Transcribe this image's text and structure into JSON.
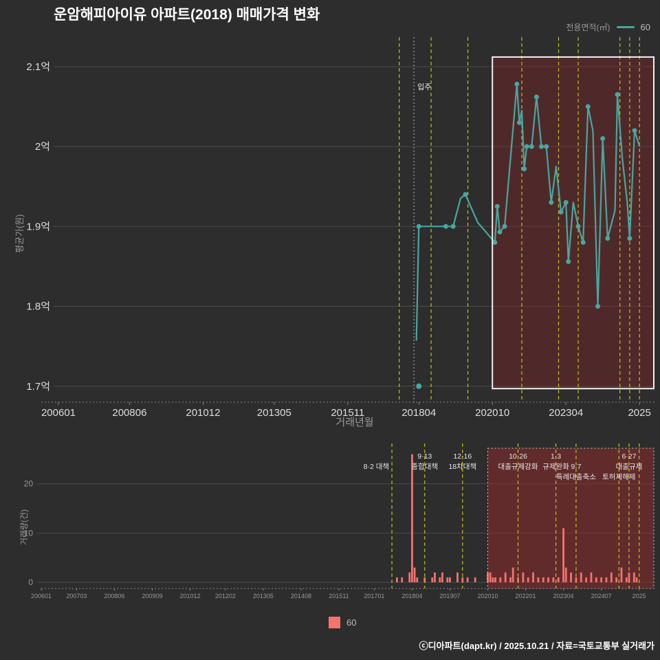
{
  "title": "운암해피아이유 아파트(2018) 매매가격 변화",
  "legend_top": {
    "label": "전용면적(㎡)",
    "series_label": "60"
  },
  "legend_bottom": {
    "series_label": "60"
  },
  "footer": "ⓒ디아파트(dapt.kr) / 2025.10.21 / 자료=국토교통부 실거래가",
  "colors": {
    "background": "#2d2d2d",
    "line": "#48a7a0",
    "bar": "#f4736e",
    "policy_line": "#c9c922",
    "grid": "#4d4d4d",
    "axis": "#888888",
    "box_fill_top": "rgba(136,38,38,0.38)",
    "box_fill_bottom": "rgba(150,42,42,0.5)",
    "box_border": "#f0f0f0",
    "tick_light": "#dddddd",
    "tick_muted": "#999999",
    "annotation_text": "#e6e6e6"
  },
  "chart_data": [
    {
      "type": "line",
      "name": "매매가격 변화",
      "ylabel": "평균가(원)",
      "xlabel": "거래년월",
      "ylim": [
        1.68,
        2.13
      ],
      "yticks": [
        {
          "label": "2.1억",
          "v": 2.1
        },
        {
          "label": "2억",
          "v": 2.0
        },
        {
          "label": "1.9억",
          "v": 1.9
        },
        {
          "label": "1.8억",
          "v": 1.8
        },
        {
          "label": "1.7억",
          "v": 1.7
        }
      ],
      "xticks": [
        {
          "label": "200601",
          "m": 0
        },
        {
          "label": "200806",
          "m": 29
        },
        {
          "label": "201012",
          "m": 59
        },
        {
          "label": "201305",
          "m": 88
        },
        {
          "label": "201511",
          "m": 118
        },
        {
          "label": "201804",
          "m": 147
        },
        {
          "label": "202010",
          "m": 177
        },
        {
          "label": "202304",
          "m": 207
        },
        {
          "label": "2025",
          "m": 237
        }
      ],
      "series": [
        {
          "name": "60",
          "points": [
            {
              "ym": "2018-03",
              "v": 1.757
            },
            {
              "ym": "2018-04",
              "v": 1.9,
              "m": 1
            },
            {
              "ym": "2019-03",
              "v": 1.9,
              "m": 1
            },
            {
              "ym": "2019-06",
              "v": 1.9,
              "m": 1
            },
            {
              "ym": "2019-09",
              "v": 1.935
            },
            {
              "ym": "2019-11",
              "v": 1.94,
              "m": 1
            },
            {
              "ym": "2020-04",
              "v": 1.905
            },
            {
              "ym": "2020-11",
              "v": 1.88,
              "m": 1
            },
            {
              "ym": "2020-12",
              "v": 1.925,
              "m": 1
            },
            {
              "ym": "2021-01",
              "v": 1.893,
              "m": 1
            },
            {
              "ym": "2021-03",
              "v": 1.9,
              "m": 1
            },
            {
              "ym": "2021-08",
              "v": 2.078,
              "m": 1
            },
            {
              "ym": "2021-09",
              "v": 2.03,
              "m": 1
            },
            {
              "ym": "2021-10",
              "v": 2.045
            },
            {
              "ym": "2021-11",
              "v": 1.972,
              "m": 1
            },
            {
              "ym": "2021-12",
              "v": 2.0,
              "m": 1
            },
            {
              "ym": "2022-02",
              "v": 2.0,
              "m": 1
            },
            {
              "ym": "2022-04",
              "v": 2.062,
              "m": 1
            },
            {
              "ym": "2022-06",
              "v": 2.0,
              "m": 1
            },
            {
              "ym": "2022-08",
              "v": 2.0,
              "m": 1
            },
            {
              "ym": "2022-10",
              "v": 1.93,
              "m": 1
            },
            {
              "ym": "2022-12",
              "v": 1.975
            },
            {
              "ym": "2023-02",
              "v": 1.918,
              "m": 1
            },
            {
              "ym": "2023-04",
              "v": 1.93,
              "m": 1
            },
            {
              "ym": "2023-05",
              "v": 1.856,
              "m": 1
            },
            {
              "ym": "2023-07",
              "v": 1.93
            },
            {
              "ym": "2023-09",
              "v": 1.9,
              "m": 1
            },
            {
              "ym": "2023-11",
              "v": 1.88,
              "m": 1
            },
            {
              "ym": "2024-01",
              "v": 2.05,
              "m": 1
            },
            {
              "ym": "2024-03",
              "v": 2.02
            },
            {
              "ym": "2024-05",
              "v": 1.8,
              "m": 1
            },
            {
              "ym": "2024-07",
              "v": 2.01,
              "m": 1
            },
            {
              "ym": "2024-09",
              "v": 1.885,
              "m": 1
            },
            {
              "ym": "2024-12",
              "v": 1.92
            },
            {
              "ym": "2025-01",
              "v": 2.065,
              "m": 1
            },
            {
              "ym": "2025-03",
              "v": 1.985
            },
            {
              "ym": "2025-05",
              "v": 1.93
            },
            {
              "ym": "2025-06",
              "v": 1.885,
              "m": 1
            },
            {
              "ym": "2025-08",
              "v": 2.02,
              "m": 1
            },
            {
              "ym": "2025-10",
              "v": 2.0
            }
          ]
        }
      ],
      "extra_points": [
        {
          "ym": "2018-04",
          "v": 1.7
        }
      ],
      "move_in": {
        "ym": "2018-02",
        "label": "입주"
      },
      "policy_dates": [
        "2017-08",
        "2018-09",
        "2019-12",
        "2021-10",
        "2023-01",
        "2023-09",
        "2025-02",
        "2025-06",
        "2025-10"
      ],
      "highlight_box": {
        "from": "2020-10",
        "v_range": [
          1.697,
          2.112
        ]
      }
    },
    {
      "type": "bar",
      "name": "거래량",
      "ylabel": "거래량(건)",
      "ylim": [
        0,
        27.5
      ],
      "yticks": [
        {
          "label": "0",
          "v": 0
        },
        {
          "label": "10",
          "v": 10
        },
        {
          "label": "20",
          "v": 20
        }
      ],
      "xticks": [
        {
          "label": "200601",
          "m": 0
        },
        {
          "label": "200703",
          "m": 14
        },
        {
          "label": "200806",
          "m": 29
        },
        {
          "label": "200909",
          "m": 44
        },
        {
          "label": "201012",
          "m": 59
        },
        {
          "label": "201202",
          "m": 73
        },
        {
          "label": "201305",
          "m": 88
        },
        {
          "label": "201408",
          "m": 103
        },
        {
          "label": "201511",
          "m": 118
        },
        {
          "label": "201701",
          "m": 132
        },
        {
          "label": "201804",
          "m": 147
        },
        {
          "label": "201907",
          "m": 162
        },
        {
          "label": "202010",
          "m": 177
        },
        {
          "label": "202201",
          "m": 192
        },
        {
          "label": "202304",
          "m": 207
        },
        {
          "label": "202407",
          "m": 222
        },
        {
          "label": "2025",
          "m": 237
        }
      ],
      "series": [
        {
          "name": "60",
          "bars": [
            {
              "ym": "2017-10",
              "v": 1
            },
            {
              "ym": "2017-12",
              "v": 1
            },
            {
              "ym": "2018-03",
              "v": 2
            },
            {
              "ym": "2018-04",
              "v": 26
            },
            {
              "ym": "2018-05",
              "v": 3
            },
            {
              "ym": "2018-06",
              "v": 1
            },
            {
              "ym": "2018-09",
              "v": 1
            },
            {
              "ym": "2018-12",
              "v": 1
            },
            {
              "ym": "2019-01",
              "v": 2
            },
            {
              "ym": "2019-03",
              "v": 1
            },
            {
              "ym": "2019-04",
              "v": 2
            },
            {
              "ym": "2019-06",
              "v": 1
            },
            {
              "ym": "2019-07",
              "v": 1
            },
            {
              "ym": "2019-10",
              "v": 2
            },
            {
              "ym": "2019-12",
              "v": 1
            },
            {
              "ym": "2020-02",
              "v": 1
            },
            {
              "ym": "2020-05",
              "v": 1
            },
            {
              "ym": "2020-10",
              "v": 2
            },
            {
              "ym": "2020-11",
              "v": 2
            },
            {
              "ym": "2020-12",
              "v": 1
            },
            {
              "ym": "2021-01",
              "v": 1
            },
            {
              "ym": "2021-03",
              "v": 1
            },
            {
              "ym": "2021-05",
              "v": 2
            },
            {
              "ym": "2021-07",
              "v": 1
            },
            {
              "ym": "2021-08",
              "v": 3
            },
            {
              "ym": "2021-10",
              "v": 1
            },
            {
              "ym": "2021-12",
              "v": 2
            },
            {
              "ym": "2022-02",
              "v": 1
            },
            {
              "ym": "2022-04",
              "v": 2
            },
            {
              "ym": "2022-06",
              "v": 1
            },
            {
              "ym": "2022-08",
              "v": 1
            },
            {
              "ym": "2022-10",
              "v": 1
            },
            {
              "ym": "2022-12",
              "v": 1
            },
            {
              "ym": "2023-02",
              "v": 1
            },
            {
              "ym": "2023-04",
              "v": 11
            },
            {
              "ym": "2023-05",
              "v": 3
            },
            {
              "ym": "2023-07",
              "v": 2
            },
            {
              "ym": "2023-09",
              "v": 1
            },
            {
              "ym": "2023-11",
              "v": 2
            },
            {
              "ym": "2024-01",
              "v": 1
            },
            {
              "ym": "2024-03",
              "v": 2
            },
            {
              "ym": "2024-05",
              "v": 1
            },
            {
              "ym": "2024-07",
              "v": 1
            },
            {
              "ym": "2024-09",
              "v": 1
            },
            {
              "ym": "2024-11",
              "v": 2
            },
            {
              "ym": "2025-01",
              "v": 1
            },
            {
              "ym": "2025-03",
              "v": 3
            },
            {
              "ym": "2025-05",
              "v": 1
            },
            {
              "ym": "2025-06",
              "v": 2
            },
            {
              "ym": "2025-08",
              "v": 2
            },
            {
              "ym": "2025-09",
              "v": 1
            }
          ]
        }
      ],
      "annotations": [
        {
          "ym": "2017-08",
          "row": 2,
          "anchor": "end",
          "lines": [
            "8·2 대책"
          ]
        },
        {
          "ym": "2018-09",
          "row": 1,
          "anchor": "middle",
          "lines": [
            "9·13",
            "종합대책"
          ]
        },
        {
          "ym": "2019-12",
          "row": 1,
          "anchor": "middle",
          "lines": [
            "12·16",
            "18차대책"
          ]
        },
        {
          "ym": "2021-10",
          "row": 1,
          "anchor": "middle",
          "lines": [
            "10·26",
            "대출규제강화"
          ]
        },
        {
          "ym": "2023-01",
          "row": 1,
          "anchor": "middle",
          "lines": [
            "1·3",
            "규제완화"
          ]
        },
        {
          "ym": "2023-09",
          "row": 2,
          "anchor": "middle",
          "lines": [
            "9·7",
            "특례대출축소"
          ]
        },
        {
          "ym": "2025-02",
          "row": 3,
          "anchor": "middle",
          "lines": [
            "토허제해제"
          ]
        },
        {
          "ym": "2025-06",
          "row": 1,
          "anchor": "middle",
          "lines": [
            "6·27",
            "대출규제"
          ]
        }
      ],
      "policy_dates": [
        "2017-08",
        "2018-09",
        "2019-12",
        "2021-10",
        "2023-01",
        "2023-09",
        "2025-02",
        "2025-06",
        "2025-10"
      ],
      "highlight_box": {
        "from": "2020-10"
      }
    }
  ]
}
